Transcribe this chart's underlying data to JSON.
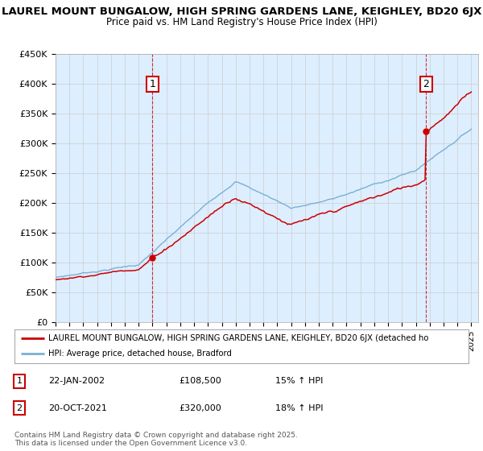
{
  "title_line1": "LAUREL MOUNT BUNGALOW, HIGH SPRING GARDENS LANE, KEIGHLEY, BD20 6JX",
  "title_line2": "Price paid vs. HM Land Registry's House Price Index (HPI)",
  "ylabel_ticks": [
    "£0",
    "£50K",
    "£100K",
    "£150K",
    "£200K",
    "£250K",
    "£300K",
    "£350K",
    "£400K",
    "£450K"
  ],
  "ytick_values": [
    0,
    50000,
    100000,
    150000,
    200000,
    250000,
    300000,
    350000,
    400000,
    450000
  ],
  "x_start_year": 1995,
  "x_end_year": 2025,
  "price_paid_color": "#cc0000",
  "hpi_color": "#7ab0d4",
  "chart_bg_color": "#ddeeff",
  "marker1_x": 2002.07,
  "marker1_price": 108500,
  "marker2_x": 2021.8,
  "marker2_price": 320000,
  "legend_line1": "LAUREL MOUNT BUNGALOW, HIGH SPRING GARDENS LANE, KEIGHLEY, BD20 6JX (detached ho",
  "legend_line2": "HPI: Average price, detached house, Bradford",
  "footer_line1": "Contains HM Land Registry data © Crown copyright and database right 2025.",
  "footer_line2": "This data is licensed under the Open Government Licence v3.0.",
  "table_row1": [
    "1",
    "22-JAN-2002",
    "£108,500",
    "15% ↑ HPI"
  ],
  "table_row2": [
    "2",
    "20-OCT-2021",
    "£320,000",
    "18% ↑ HPI"
  ],
  "background_color": "#ffffff",
  "grid_color": "#cccccc"
}
